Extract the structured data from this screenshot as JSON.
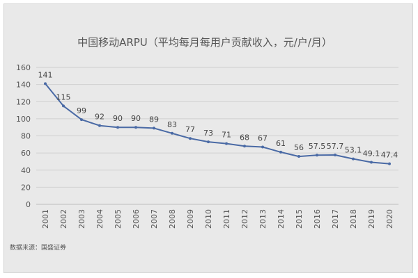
{
  "chart_data": {
    "type": "line",
    "title": "中国移动ARPU（平均每月每用户贡献收入，元/户/月）",
    "x": [
      "2001",
      "2002",
      "2003",
      "2004",
      "2005",
      "2006",
      "2007",
      "2008",
      "2009",
      "2010",
      "2011",
      "2012",
      "2013",
      "2014",
      "2015",
      "2016",
      "2017",
      "2018",
      "2019",
      "2020"
    ],
    "series": [
      {
        "values": [
          141,
          115,
          99,
          92,
          90,
          90,
          89,
          83,
          77,
          73,
          71,
          68,
          67,
          61,
          56,
          57.5,
          57.7,
          53.1,
          49.1,
          47.4
        ]
      }
    ],
    "data_labels": [
      "141",
      "115",
      "99",
      "92",
      "90",
      "90",
      "89",
      "83",
      "77",
      "73",
      "71",
      "68",
      "67",
      "61",
      "56",
      "57.5",
      "57.7",
      "53.1",
      "49.1",
      "47.4"
    ],
    "y_ticks": [
      0,
      20,
      40,
      60,
      80,
      100,
      120,
      140,
      160
    ],
    "ylim": [
      0,
      160
    ],
    "xlabel": "",
    "ylabel": "",
    "grid": true,
    "line_color": "#4a6aa5",
    "source": "数据来源：国盛证券"
  }
}
